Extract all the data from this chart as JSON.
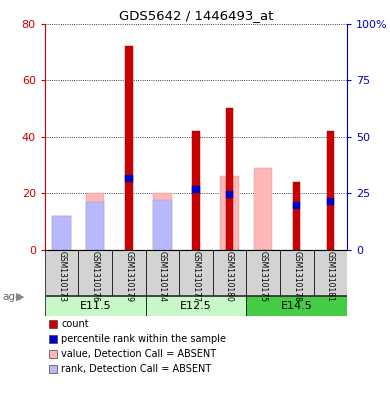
{
  "title": "GDS5642 / 1446493_at",
  "samples": [
    "GSM1310173",
    "GSM1310176",
    "GSM1310179",
    "GSM1310174",
    "GSM1310177",
    "GSM1310180",
    "GSM1310175",
    "GSM1310178",
    "GSM1310181"
  ],
  "count_values": [
    0,
    0,
    72,
    0,
    42,
    50,
    0,
    24,
    42
  ],
  "rank_values": [
    0,
    0,
    33,
    0,
    28,
    26,
    0,
    21,
    23
  ],
  "absent_value": [
    12,
    20,
    0,
    20,
    0,
    0,
    29,
    0,
    0
  ],
  "absent_rank": [
    15,
    21,
    0,
    22,
    0,
    0,
    0,
    0,
    0
  ],
  "absent_rank_gsm80": 26,
  "ylim_left": [
    0,
    80
  ],
  "ylim_right": [
    0,
    100
  ],
  "yticks_left": [
    0,
    20,
    40,
    60,
    80
  ],
  "ytick_labels_left": [
    "0",
    "20",
    "40",
    "60",
    "80"
  ],
  "ytick_labels_right": [
    "0",
    "25",
    "50",
    "75",
    "100%"
  ],
  "left_axis_color": "#cc0000",
  "right_axis_color": "#0000cc",
  "bar_color_count": "#cc0000",
  "bar_color_rank": "#0000cc",
  "bar_color_absent_value": "#ffb6b6",
  "bar_color_absent_rank": "#b8b8ff",
  "sample_bg_color": "#d3d3d3",
  "group_info": [
    {
      "start": 0,
      "end": 2,
      "label": "E11.5",
      "color": "#c8f7c8"
    },
    {
      "start": 3,
      "end": 5,
      "label": "E12.5",
      "color": "#c8f7c8"
    },
    {
      "start": 6,
      "end": 8,
      "label": "E14.5",
      "color": "#44cc44"
    }
  ],
  "legend_items": [
    {
      "color": "#cc0000",
      "label": "count"
    },
    {
      "color": "#0000cc",
      "label": "percentile rank within the sample"
    },
    {
      "color": "#ffb6b6",
      "label": "value, Detection Call = ABSENT"
    },
    {
      "color": "#b8b8ff",
      "label": "rank, Detection Call = ABSENT"
    }
  ]
}
